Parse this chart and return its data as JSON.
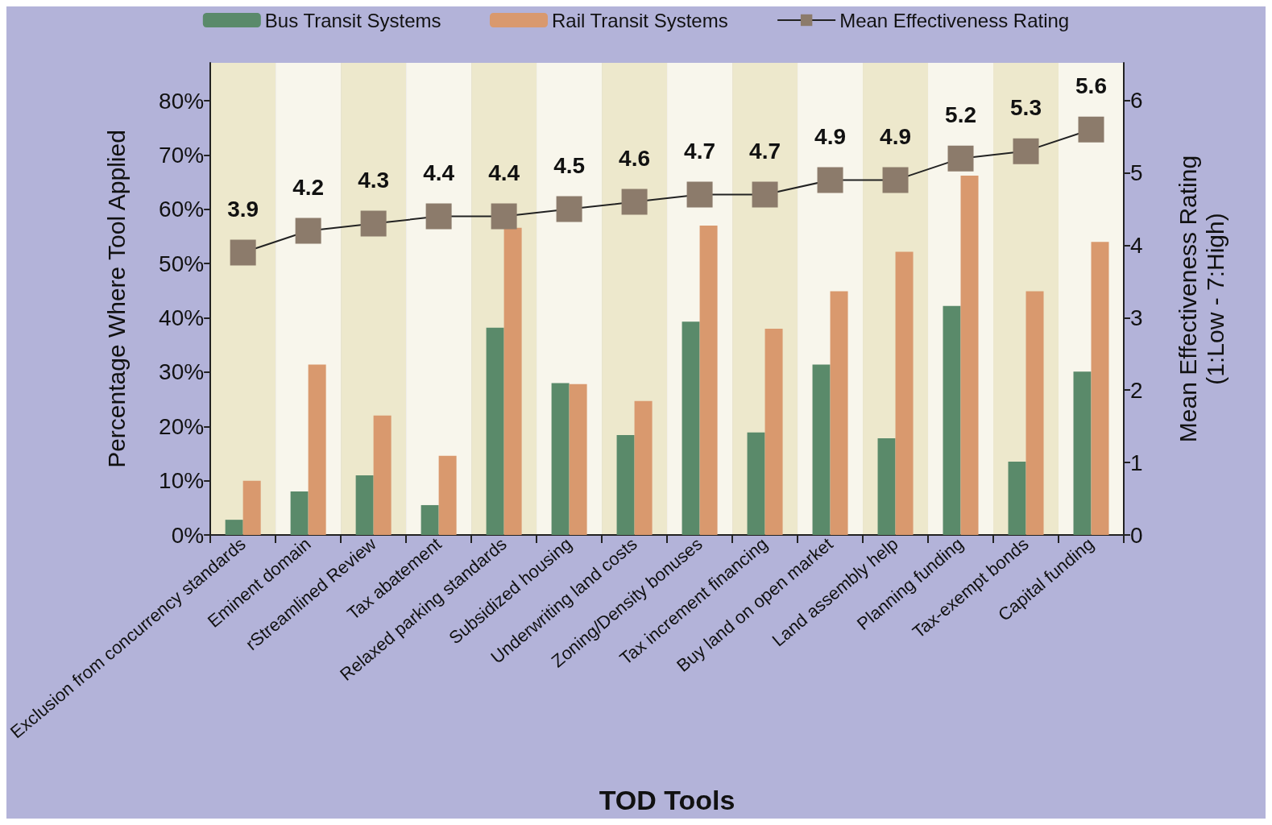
{
  "chart_data": {
    "type": "bar",
    "xlabel": "TOD Tools",
    "ylabel": "Percentage Where Tool Applied",
    "y2label": "Mean Effectiveness Rating\n(1:Low - 7:High)",
    "categories": [
      "Exclusion from concurrency standards",
      "Eminent domain",
      "rStreamlined Review",
      "Tax abatement",
      "Relaxed parking standards",
      "Subsidized housing",
      "Underwriting land costs",
      "Zoning/Density bonuses",
      "Tax increment financing",
      "Buy land on open market",
      "Land assembly help",
      "Planning funding",
      "Tax-exempt bonds",
      "Capital funding"
    ],
    "series": [
      {
        "name": "Bus Transit Systems",
        "color": "#5a8a6a",
        "values": [
          2.8,
          8,
          11,
          5.5,
          38.2,
          28,
          18.4,
          39.3,
          18.9,
          31.4,
          17.8,
          42.2,
          13.5,
          30.1
        ]
      },
      {
        "name": "Rail Transit Systems",
        "color": "#d9996e",
        "values": [
          10,
          31.4,
          22,
          14.6,
          56.6,
          27.8,
          24.7,
          57,
          38,
          44.9,
          52.2,
          66.2,
          44.9,
          54
        ]
      },
      {
        "name": "Mean Effectiveness Rating",
        "type": "line",
        "axis": "y2",
        "color": "#8c7b6b",
        "marker": "square",
        "data_labels": true,
        "values": [
          3.9,
          4.2,
          4.3,
          4.4,
          4.4,
          4.5,
          4.6,
          4.7,
          4.7,
          4.9,
          4.9,
          5.2,
          5.3,
          5.6
        ]
      }
    ],
    "ylim": [
      0,
      87
    ],
    "yticks": [
      {
        "value": 0,
        "label": "0%"
      },
      {
        "value": 10,
        "label": "10%"
      },
      {
        "value": 20,
        "label": "20%"
      },
      {
        "value": 30,
        "label": "30%"
      },
      {
        "value": 40,
        "label": "40%"
      },
      {
        "value": 50,
        "label": "50%"
      },
      {
        "value": 60,
        "label": "60%"
      },
      {
        "value": 70,
        "label": "70%"
      },
      {
        "value": 80,
        "label": "80%"
      }
    ],
    "y2lim": [
      0,
      6.52
    ],
    "y2ticks": [
      0,
      1,
      2,
      3,
      4,
      5,
      6
    ],
    "grid": false,
    "legend": "top"
  }
}
